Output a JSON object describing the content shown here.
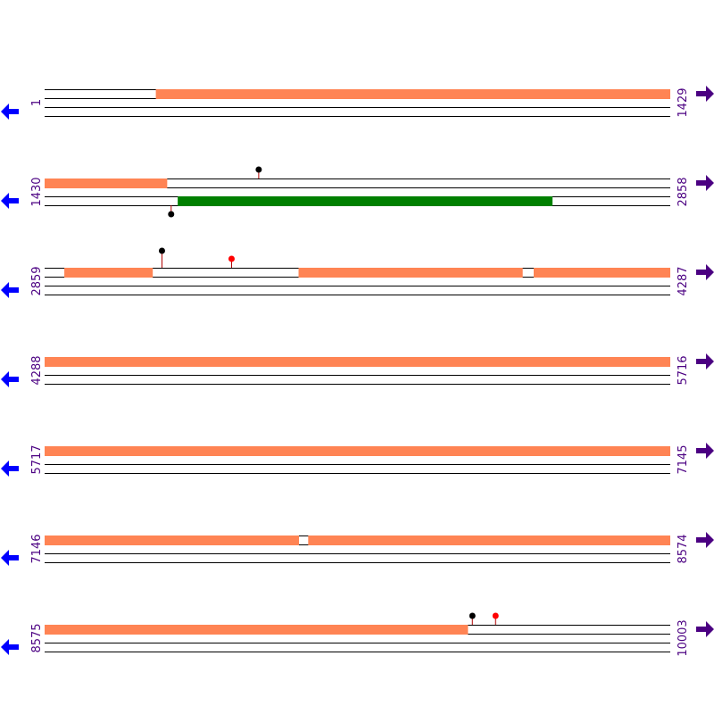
{
  "colors": {
    "orf": "#ff8454",
    "orf_alt": "#008000",
    "line": "#000000",
    "label": "#4b0082",
    "arrow_left": "#0000ff",
    "arrow_right": "#4b0082",
    "marker_black": "#000000",
    "marker_red": "#ff0000",
    "stem": "#b00000"
  },
  "icons": {
    "left": "arrow-left-icon",
    "right": "arrow-right-icon"
  },
  "rows": [
    {
      "start": "1",
      "end": "1429",
      "from": 1,
      "to": 1429,
      "features": [
        {
          "strand": "forward",
          "start": 255,
          "end": 1429,
          "color": "orf"
        }
      ],
      "markers": []
    },
    {
      "start": "1430",
      "end": "2858",
      "from": 1430,
      "to": 2858,
      "features": [
        {
          "strand": "forward",
          "start": 1430,
          "end": 1709,
          "color": "orf"
        },
        {
          "strand": "reverse",
          "start": 1734,
          "end": 2589,
          "color": "orf_alt"
        }
      ],
      "markers": [
        {
          "strand": "forward",
          "pos": 1919,
          "color": "marker_black"
        },
        {
          "strand": "reverse",
          "pos": 1719,
          "color": "marker_black"
        }
      ]
    },
    {
      "start": "2859",
      "end": "4287",
      "from": 2859,
      "to": 4287,
      "features": [
        {
          "strand": "forward",
          "start": 2904,
          "end": 3105,
          "color": "orf"
        },
        {
          "strand": "forward",
          "start": 3439,
          "end": 3950,
          "color": "orf"
        },
        {
          "strand": "forward",
          "start": 3976,
          "end": 4287,
          "color": "orf"
        }
      ],
      "markers": [
        {
          "strand": "forward",
          "pos": 3127,
          "color": "marker_black",
          "tall": true
        },
        {
          "strand": "forward",
          "pos": 3286,
          "color": "marker_red"
        }
      ]
    },
    {
      "start": "4288",
      "end": "5716",
      "from": 4288,
      "to": 5716,
      "features": [
        {
          "strand": "forward",
          "start": 4288,
          "end": 5716,
          "color": "orf"
        }
      ],
      "markers": []
    },
    {
      "start": "5717",
      "end": "7145",
      "from": 5717,
      "to": 7145,
      "features": [
        {
          "strand": "forward",
          "start": 5717,
          "end": 7145,
          "color": "orf"
        }
      ],
      "markers": []
    },
    {
      "start": "7146",
      "end": "8574",
      "from": 7146,
      "to": 8574,
      "features": [
        {
          "strand": "forward",
          "start": 7146,
          "end": 7726,
          "color": "orf"
        },
        {
          "strand": "forward",
          "start": 7748,
          "end": 8574,
          "color": "orf"
        }
      ],
      "markers": []
    },
    {
      "start": "8575",
      "end": "10003",
      "from": 8575,
      "to": 10003,
      "features": [
        {
          "strand": "forward",
          "start": 8575,
          "end": 9541,
          "color": "orf"
        }
      ],
      "markers": [
        {
          "strand": "forward",
          "pos": 9552,
          "color": "marker_black"
        },
        {
          "strand": "forward",
          "pos": 9605,
          "color": "marker_red"
        }
      ]
    }
  ]
}
